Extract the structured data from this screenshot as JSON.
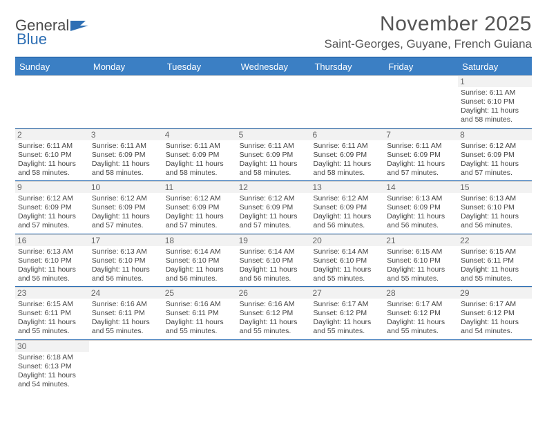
{
  "brand": {
    "part1": "General",
    "part2": "Blue"
  },
  "title": "November 2025",
  "location": "Saint-Georges, Guyane, French Guiana",
  "colors": {
    "header_bar": "#3b7fc4",
    "border": "#2e6fb4",
    "daynum_bg": "#f2f2f2",
    "text": "#444444"
  },
  "day_headers": [
    "Sunday",
    "Monday",
    "Tuesday",
    "Wednesday",
    "Thursday",
    "Friday",
    "Saturday"
  ],
  "weeks": [
    [
      null,
      null,
      null,
      null,
      null,
      null,
      {
        "n": "1",
        "sr": "6:11 AM",
        "ss": "6:10 PM",
        "dl": "11 hours and 58 minutes."
      }
    ],
    [
      {
        "n": "2",
        "sr": "6:11 AM",
        "ss": "6:10 PM",
        "dl": "11 hours and 58 minutes."
      },
      {
        "n": "3",
        "sr": "6:11 AM",
        "ss": "6:09 PM",
        "dl": "11 hours and 58 minutes."
      },
      {
        "n": "4",
        "sr": "6:11 AM",
        "ss": "6:09 PM",
        "dl": "11 hours and 58 minutes."
      },
      {
        "n": "5",
        "sr": "6:11 AM",
        "ss": "6:09 PM",
        "dl": "11 hours and 58 minutes."
      },
      {
        "n": "6",
        "sr": "6:11 AM",
        "ss": "6:09 PM",
        "dl": "11 hours and 58 minutes."
      },
      {
        "n": "7",
        "sr": "6:11 AM",
        "ss": "6:09 PM",
        "dl": "11 hours and 57 minutes."
      },
      {
        "n": "8",
        "sr": "6:12 AM",
        "ss": "6:09 PM",
        "dl": "11 hours and 57 minutes."
      }
    ],
    [
      {
        "n": "9",
        "sr": "6:12 AM",
        "ss": "6:09 PM",
        "dl": "11 hours and 57 minutes."
      },
      {
        "n": "10",
        "sr": "6:12 AM",
        "ss": "6:09 PM",
        "dl": "11 hours and 57 minutes."
      },
      {
        "n": "11",
        "sr": "6:12 AM",
        "ss": "6:09 PM",
        "dl": "11 hours and 57 minutes."
      },
      {
        "n": "12",
        "sr": "6:12 AM",
        "ss": "6:09 PM",
        "dl": "11 hours and 57 minutes."
      },
      {
        "n": "13",
        "sr": "6:12 AM",
        "ss": "6:09 PM",
        "dl": "11 hours and 56 minutes."
      },
      {
        "n": "14",
        "sr": "6:13 AM",
        "ss": "6:09 PM",
        "dl": "11 hours and 56 minutes."
      },
      {
        "n": "15",
        "sr": "6:13 AM",
        "ss": "6:10 PM",
        "dl": "11 hours and 56 minutes."
      }
    ],
    [
      {
        "n": "16",
        "sr": "6:13 AM",
        "ss": "6:10 PM",
        "dl": "11 hours and 56 minutes."
      },
      {
        "n": "17",
        "sr": "6:13 AM",
        "ss": "6:10 PM",
        "dl": "11 hours and 56 minutes."
      },
      {
        "n": "18",
        "sr": "6:14 AM",
        "ss": "6:10 PM",
        "dl": "11 hours and 56 minutes."
      },
      {
        "n": "19",
        "sr": "6:14 AM",
        "ss": "6:10 PM",
        "dl": "11 hours and 56 minutes."
      },
      {
        "n": "20",
        "sr": "6:14 AM",
        "ss": "6:10 PM",
        "dl": "11 hours and 55 minutes."
      },
      {
        "n": "21",
        "sr": "6:15 AM",
        "ss": "6:10 PM",
        "dl": "11 hours and 55 minutes."
      },
      {
        "n": "22",
        "sr": "6:15 AM",
        "ss": "6:11 PM",
        "dl": "11 hours and 55 minutes."
      }
    ],
    [
      {
        "n": "23",
        "sr": "6:15 AM",
        "ss": "6:11 PM",
        "dl": "11 hours and 55 minutes."
      },
      {
        "n": "24",
        "sr": "6:16 AM",
        "ss": "6:11 PM",
        "dl": "11 hours and 55 minutes."
      },
      {
        "n": "25",
        "sr": "6:16 AM",
        "ss": "6:11 PM",
        "dl": "11 hours and 55 minutes."
      },
      {
        "n": "26",
        "sr": "6:16 AM",
        "ss": "6:12 PM",
        "dl": "11 hours and 55 minutes."
      },
      {
        "n": "27",
        "sr": "6:17 AM",
        "ss": "6:12 PM",
        "dl": "11 hours and 55 minutes."
      },
      {
        "n": "28",
        "sr": "6:17 AM",
        "ss": "6:12 PM",
        "dl": "11 hours and 55 minutes."
      },
      {
        "n": "29",
        "sr": "6:17 AM",
        "ss": "6:12 PM",
        "dl": "11 hours and 54 minutes."
      }
    ],
    [
      {
        "n": "30",
        "sr": "6:18 AM",
        "ss": "6:13 PM",
        "dl": "11 hours and 54 minutes."
      },
      null,
      null,
      null,
      null,
      null,
      null
    ]
  ],
  "labels": {
    "sunrise": "Sunrise:",
    "sunset": "Sunset:",
    "daylight": "Daylight:"
  }
}
